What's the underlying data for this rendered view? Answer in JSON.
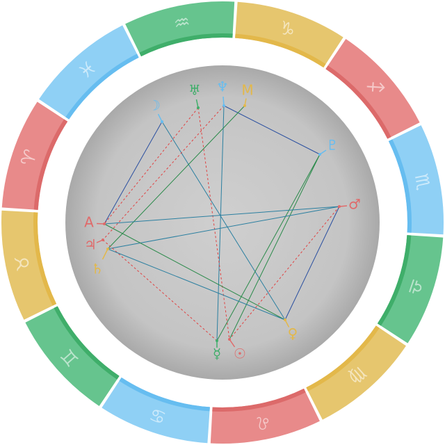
{
  "signs": [
    "♒",
    "♑",
    "♐",
    "♏",
    "♎",
    "♍",
    "♌",
    "♋",
    "♊",
    "♉",
    "♈",
    "♓"
  ],
  "points": [
    {
      "glyph": "♅"
    },
    {
      "glyph": "♆"
    },
    {
      "glyph": "M"
    },
    {
      "glyph": "☽"
    },
    {
      "glyph": "♇"
    },
    {
      "glyph": "♂"
    },
    {
      "glyph": "♀"
    },
    {
      "glyph": "☉"
    },
    {
      "glyph": "☿"
    },
    {
      "glyph": "A"
    },
    {
      "glyph": "♃"
    },
    {
      "glyph": "♄"
    }
  ]
}
